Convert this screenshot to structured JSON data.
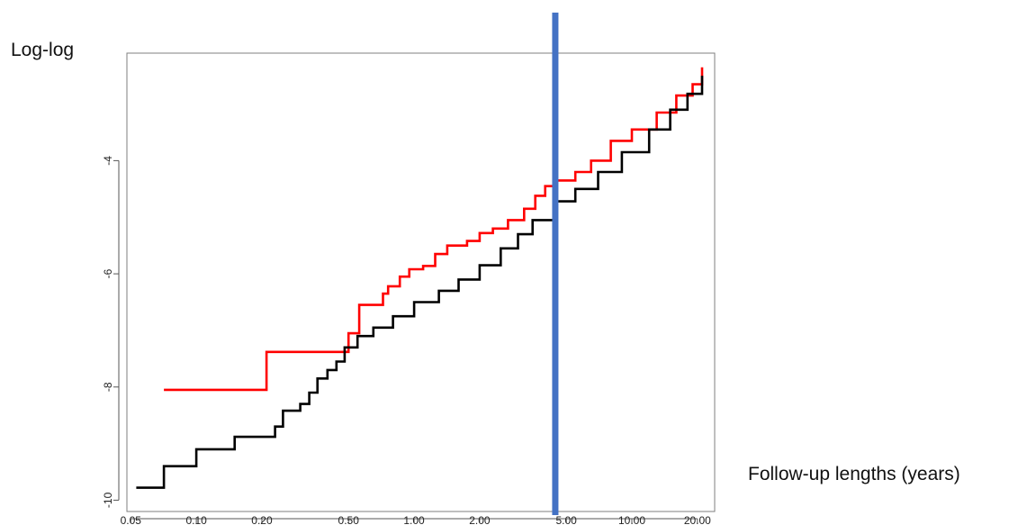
{
  "chart_data": {
    "type": "line",
    "title": "",
    "ylabel": "Log-log",
    "xlabel": "Follow-up lengths (years)",
    "x_scale": "log",
    "xlim": [
      0.048,
      24
    ],
    "ylim": [
      -10.2,
      -2.1
    ],
    "x_ticks": [
      0.05,
      0.1,
      0.2,
      0.5,
      1,
      2,
      5,
      10,
      20
    ],
    "x_tick_labels": [
      "0.05",
      "0.10",
      "0.20",
      "0.50",
      "1.00",
      "2.00",
      "5.00",
      "10.00",
      "20.00"
    ],
    "y_ticks": [
      -10,
      -8,
      -6,
      -4
    ],
    "y_tick_labels": [
      "-10",
      "-8",
      "-6",
      "-4"
    ],
    "grid": false,
    "colors": {
      "red_series": "#ff0000",
      "black_series": "#000000",
      "marker_line": "#4472c4",
      "frame": "#7f7f7f"
    },
    "vertical_line": {
      "x": 4.45,
      "color": "#4472c4"
    },
    "series": [
      {
        "color": "#ff0000",
        "step": true,
        "points": [
          [
            0.071,
            -8.05
          ],
          [
            0.21,
            -8.05
          ],
          [
            0.21,
            -7.38
          ],
          [
            0.47,
            -7.38
          ],
          [
            0.5,
            -7.05
          ],
          [
            0.56,
            -6.55
          ],
          [
            0.69,
            -6.55
          ],
          [
            0.72,
            -6.35
          ],
          [
            0.76,
            -6.22
          ],
          [
            0.86,
            -6.05
          ],
          [
            0.95,
            -5.92
          ],
          [
            1.1,
            -5.86
          ],
          [
            1.25,
            -5.65
          ],
          [
            1.42,
            -5.5
          ],
          [
            1.75,
            -5.42
          ],
          [
            2.0,
            -5.28
          ],
          [
            2.3,
            -5.2
          ],
          [
            2.7,
            -5.05
          ],
          [
            3.2,
            -4.85
          ],
          [
            3.6,
            -4.62
          ],
          [
            4.0,
            -4.45
          ],
          [
            4.5,
            -4.35
          ],
          [
            5.5,
            -4.2
          ],
          [
            6.5,
            -4.0
          ],
          [
            8.0,
            -3.65
          ],
          [
            10.0,
            -3.45
          ],
          [
            13.0,
            -3.15
          ],
          [
            16.0,
            -2.85
          ],
          [
            19.0,
            -2.65
          ],
          [
            21.0,
            -2.35
          ]
        ]
      },
      {
        "color": "#000000",
        "step": true,
        "points": [
          [
            0.053,
            -9.78
          ],
          [
            0.071,
            -9.78
          ],
          [
            0.071,
            -9.4
          ],
          [
            0.1,
            -9.4
          ],
          [
            0.1,
            -9.1
          ],
          [
            0.15,
            -9.1
          ],
          [
            0.15,
            -8.88
          ],
          [
            0.21,
            -8.88
          ],
          [
            0.23,
            -8.7
          ],
          [
            0.25,
            -8.42
          ],
          [
            0.3,
            -8.3
          ],
          [
            0.33,
            -8.1
          ],
          [
            0.36,
            -7.85
          ],
          [
            0.4,
            -7.7
          ],
          [
            0.44,
            -7.55
          ],
          [
            0.48,
            -7.3
          ],
          [
            0.55,
            -7.1
          ],
          [
            0.65,
            -6.95
          ],
          [
            0.8,
            -6.75
          ],
          [
            1.0,
            -6.5
          ],
          [
            1.3,
            -6.3
          ],
          [
            1.6,
            -6.1
          ],
          [
            2.0,
            -5.85
          ],
          [
            2.5,
            -5.55
          ],
          [
            3.0,
            -5.3
          ],
          [
            3.5,
            -5.05
          ],
          [
            4.5,
            -4.72
          ],
          [
            5.5,
            -4.5
          ],
          [
            7.0,
            -4.2
          ],
          [
            9.0,
            -3.85
          ],
          [
            12.0,
            -3.45
          ],
          [
            15.0,
            -3.1
          ],
          [
            18.0,
            -2.82
          ],
          [
            21.0,
            -2.5
          ]
        ]
      }
    ]
  }
}
